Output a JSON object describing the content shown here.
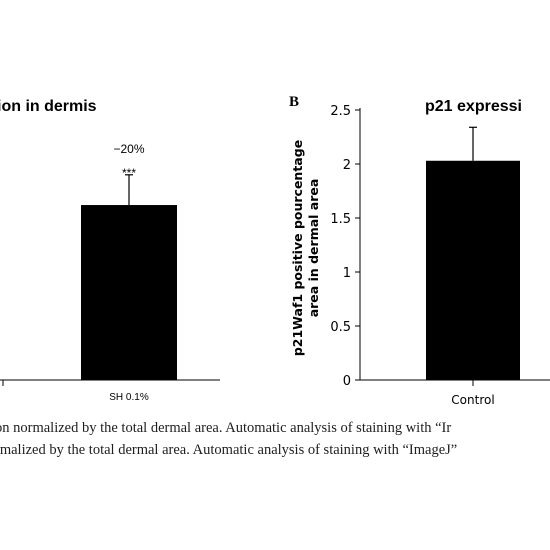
{
  "chart_data": [
    {
      "type": "bar",
      "title": "ion in dermis",
      "categories": [
        "SH 0.1%"
      ],
      "values": [
        1.62
      ],
      "error_bars": [
        0.28
      ],
      "annotations": {
        "percent_change": "−20%",
        "significance": "***"
      },
      "axis": {
        "y_visible": false
      }
    },
    {
      "type": "bar",
      "panel_label": "B",
      "title": "p21 expressi",
      "ylabel": "p21Waf1 positive pourcentage area in dermal area",
      "ylabel_lines": [
        "p21Waf1 positive pourcentage",
        "area in dermal area"
      ],
      "categories": [
        "Control"
      ],
      "values": [
        2.03
      ],
      "error_bars": [
        0.31
      ],
      "ylim": [
        0,
        2.5
      ],
      "yticks": [
        "0",
        "0.5",
        "1",
        "1.5",
        "2",
        "2.5"
      ]
    }
  ],
  "caption": {
    "line1": "on normalized by the total dermal area. Automatic analysis of staining with “Ir",
    "line2": "rmalized by the total dermal area. Automatic analysis of staining with “ImageJ”"
  },
  "colors": {
    "bar": "#000000",
    "axis": "#000000",
    "text": "#000000"
  }
}
